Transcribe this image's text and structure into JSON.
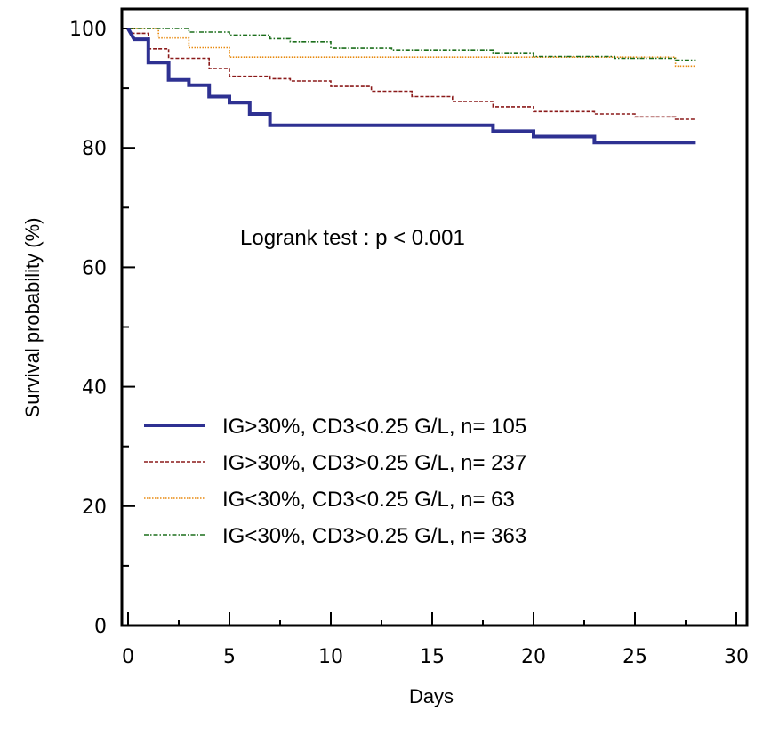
{
  "chart_data": {
    "type": "line",
    "subtype": "kaplan-meier step",
    "xlabel": "Days",
    "ylabel": "Survival probability (%)",
    "xlim": [
      0,
      30
    ],
    "ylim": [
      0,
      100
    ],
    "x_ticks": [
      "0",
      "5",
      "10",
      "15",
      "20",
      "25",
      "30"
    ],
    "y_ticks": [
      "0",
      "20",
      "40",
      "60",
      "80",
      "100"
    ],
    "grid": false,
    "legend_position": "lower-left",
    "annotation": "Logrank test : p < 0.001",
    "series": [
      {
        "name": "IG>30%, CD3<0.25 G/L, n= 105",
        "color": "#2e3192",
        "style": "solid",
        "points": [
          [
            0,
            100
          ],
          [
            0.3,
            98.2
          ],
          [
            1,
            98.2
          ],
          [
            1,
            94.3
          ],
          [
            2,
            94.3
          ],
          [
            2,
            91.4
          ],
          [
            3,
            91.4
          ],
          [
            3,
            90.5
          ],
          [
            4,
            90.5
          ],
          [
            4,
            88.6
          ],
          [
            5,
            88.6
          ],
          [
            5,
            87.6
          ],
          [
            6,
            87.6
          ],
          [
            6,
            85.7
          ],
          [
            7,
            85.7
          ],
          [
            7,
            83.8
          ],
          [
            18,
            83.8
          ],
          [
            18,
            82.8
          ],
          [
            20,
            82.8
          ],
          [
            20,
            81.9
          ],
          [
            23,
            81.9
          ],
          [
            23,
            80.9
          ],
          [
            28,
            80.9
          ]
        ]
      },
      {
        "name": "IG>30%, CD3>0.25 G/L, n= 237",
        "color": "#8b1a1a",
        "style": "dashed",
        "points": [
          [
            0,
            100
          ],
          [
            0.2,
            99.2
          ],
          [
            1,
            99.2
          ],
          [
            1,
            96.6
          ],
          [
            2,
            96.6
          ],
          [
            2,
            95.0
          ],
          [
            4,
            95.0
          ],
          [
            4,
            93.3
          ],
          [
            5,
            93.3
          ],
          [
            5,
            92.0
          ],
          [
            7,
            92.0
          ],
          [
            7,
            91.6
          ],
          [
            8,
            91.6
          ],
          [
            8,
            91.2
          ],
          [
            10,
            91.2
          ],
          [
            10,
            90.3
          ],
          [
            12,
            90.3
          ],
          [
            12,
            89.5
          ],
          [
            14,
            89.5
          ],
          [
            14,
            88.6
          ],
          [
            16,
            88.6
          ],
          [
            16,
            87.8
          ],
          [
            18,
            87.8
          ],
          [
            18,
            86.9
          ],
          [
            20,
            86.9
          ],
          [
            20,
            86.1
          ],
          [
            23,
            86.1
          ],
          [
            23,
            85.7
          ],
          [
            25,
            85.7
          ],
          [
            25,
            85.2
          ],
          [
            27,
            85.2
          ],
          [
            27,
            84.8
          ],
          [
            28,
            84.8
          ]
        ]
      },
      {
        "name": "IG<30%, CD3<0.25 G/L, n= 63",
        "color": "#e88a10",
        "style": "dotted",
        "points": [
          [
            0,
            100
          ],
          [
            1.5,
            100
          ],
          [
            1.5,
            98.4
          ],
          [
            3,
            98.4
          ],
          [
            3,
            96.8
          ],
          [
            5,
            96.8
          ],
          [
            5,
            95.2
          ],
          [
            27,
            95.2
          ],
          [
            27,
            93.7
          ],
          [
            28,
            93.7
          ]
        ]
      },
      {
        "name": "IG<30%, CD3>0.25 G/L, n= 363",
        "color": "#1b6e1b",
        "style": "dash-dot",
        "points": [
          [
            0,
            100
          ],
          [
            3,
            100
          ],
          [
            3,
            99.4
          ],
          [
            5,
            99.4
          ],
          [
            5,
            98.9
          ],
          [
            7,
            98.9
          ],
          [
            7,
            98.3
          ],
          [
            8,
            98.3
          ],
          [
            8,
            97.8
          ],
          [
            10,
            97.8
          ],
          [
            10,
            96.7
          ],
          [
            13,
            96.7
          ],
          [
            13,
            96.4
          ],
          [
            18,
            96.4
          ],
          [
            18,
            95.8
          ],
          [
            20,
            95.8
          ],
          [
            20,
            95.3
          ],
          [
            24,
            95.3
          ],
          [
            24,
            95.0
          ],
          [
            27,
            95.0
          ],
          [
            27,
            94.7
          ],
          [
            28,
            94.7
          ]
        ]
      }
    ]
  }
}
